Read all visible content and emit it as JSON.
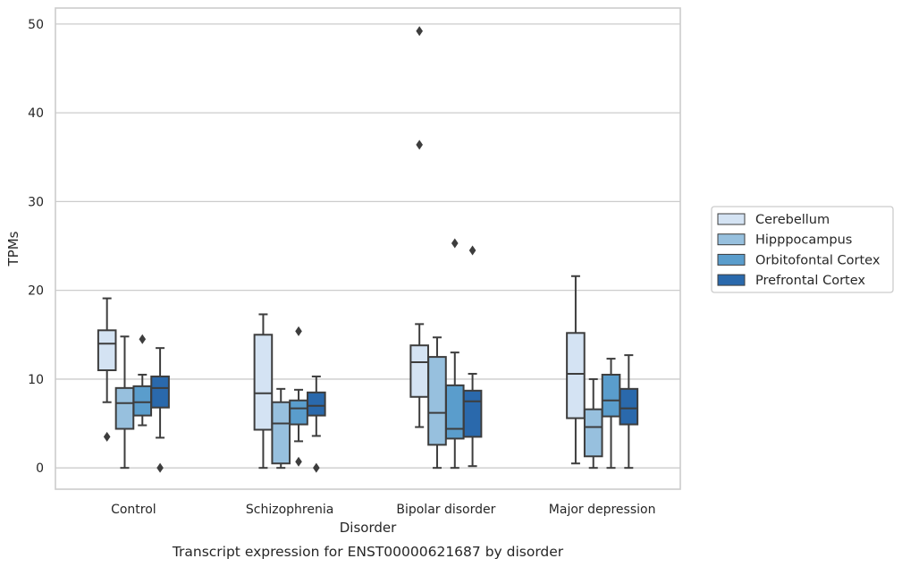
{
  "chart_data": {
    "type": "boxplot",
    "title": "",
    "caption": "Transcript expression for ENST00000621687 by disorder",
    "xlabel": "Disorder",
    "ylabel": "TPMs",
    "ylim": [
      -2.4,
      51.8
    ],
    "yticks": [
      0,
      10,
      20,
      30,
      40,
      50
    ],
    "grid": "horizontal",
    "legend_position": "right",
    "categories": [
      "Control",
      "Schizophrenia",
      "Bipolar disorder",
      "Major depression"
    ],
    "series": [
      {
        "name": "Cerebellum",
        "color": "#d4e3f3",
        "boxes": [
          {
            "whisker_low": 7.4,
            "q1": 11.0,
            "median": 14.0,
            "q3": 15.5,
            "whisker_high": 19.1,
            "outliers": [
              3.5
            ]
          },
          {
            "whisker_low": 0.0,
            "q1": 4.3,
            "median": 8.4,
            "q3": 15.0,
            "whisker_high": 17.3,
            "outliers": []
          },
          {
            "whisker_low": 4.6,
            "q1": 8.0,
            "median": 11.9,
            "q3": 13.8,
            "whisker_high": 16.2,
            "outliers": [
              49.2,
              36.4
            ]
          },
          {
            "whisker_low": 0.5,
            "q1": 5.6,
            "median": 10.6,
            "q3": 15.2,
            "whisker_high": 21.6,
            "outliers": []
          }
        ]
      },
      {
        "name": "Hipppocampus",
        "color": "#97c0de",
        "boxes": [
          {
            "whisker_low": 0.0,
            "q1": 4.4,
            "median": 7.3,
            "q3": 9.0,
            "whisker_high": 14.8,
            "outliers": []
          },
          {
            "whisker_low": 0.0,
            "q1": 0.5,
            "median": 5.0,
            "q3": 7.4,
            "whisker_high": 8.9,
            "outliers": []
          },
          {
            "whisker_low": 0.0,
            "q1": 2.6,
            "median": 6.2,
            "q3": 12.5,
            "whisker_high": 14.7,
            "outliers": []
          },
          {
            "whisker_low": 0.0,
            "q1": 1.3,
            "median": 4.6,
            "q3": 6.6,
            "whisker_high": 10.0,
            "outliers": []
          }
        ]
      },
      {
        "name": "Orbitofontal Cortex",
        "color": "#5a9dcc",
        "boxes": [
          {
            "whisker_low": 4.8,
            "q1": 5.9,
            "median": 7.4,
            "q3": 9.2,
            "whisker_high": 10.5,
            "outliers": [
              14.5
            ]
          },
          {
            "whisker_low": 3.0,
            "q1": 4.9,
            "median": 6.7,
            "q3": 7.6,
            "whisker_high": 8.8,
            "outliers": [
              15.4,
              0.7
            ]
          },
          {
            "whisker_low": 0.0,
            "q1": 3.3,
            "median": 4.4,
            "q3": 9.3,
            "whisker_high": 13.0,
            "outliers": [
              25.3
            ]
          },
          {
            "whisker_low": 0.0,
            "q1": 5.8,
            "median": 7.6,
            "q3": 10.5,
            "whisker_high": 12.3,
            "outliers": []
          }
        ]
      },
      {
        "name": "Prefrontal Cortex",
        "color": "#2a69ac",
        "boxes": [
          {
            "whisker_low": 3.4,
            "q1": 6.8,
            "median": 9.0,
            "q3": 10.3,
            "whisker_high": 13.5,
            "outliers": [
              0.0
            ]
          },
          {
            "whisker_low": 3.6,
            "q1": 5.9,
            "median": 7.0,
            "q3": 8.5,
            "whisker_high": 10.3,
            "outliers": [
              0.0
            ]
          },
          {
            "whisker_low": 0.2,
            "q1": 3.5,
            "median": 7.5,
            "q3": 8.7,
            "whisker_high": 10.6,
            "outliers": [
              24.5
            ]
          },
          {
            "whisker_low": 0.0,
            "q1": 4.9,
            "median": 6.7,
            "q3": 8.9,
            "whisker_high": 12.7,
            "outliers": []
          }
        ]
      }
    ]
  }
}
